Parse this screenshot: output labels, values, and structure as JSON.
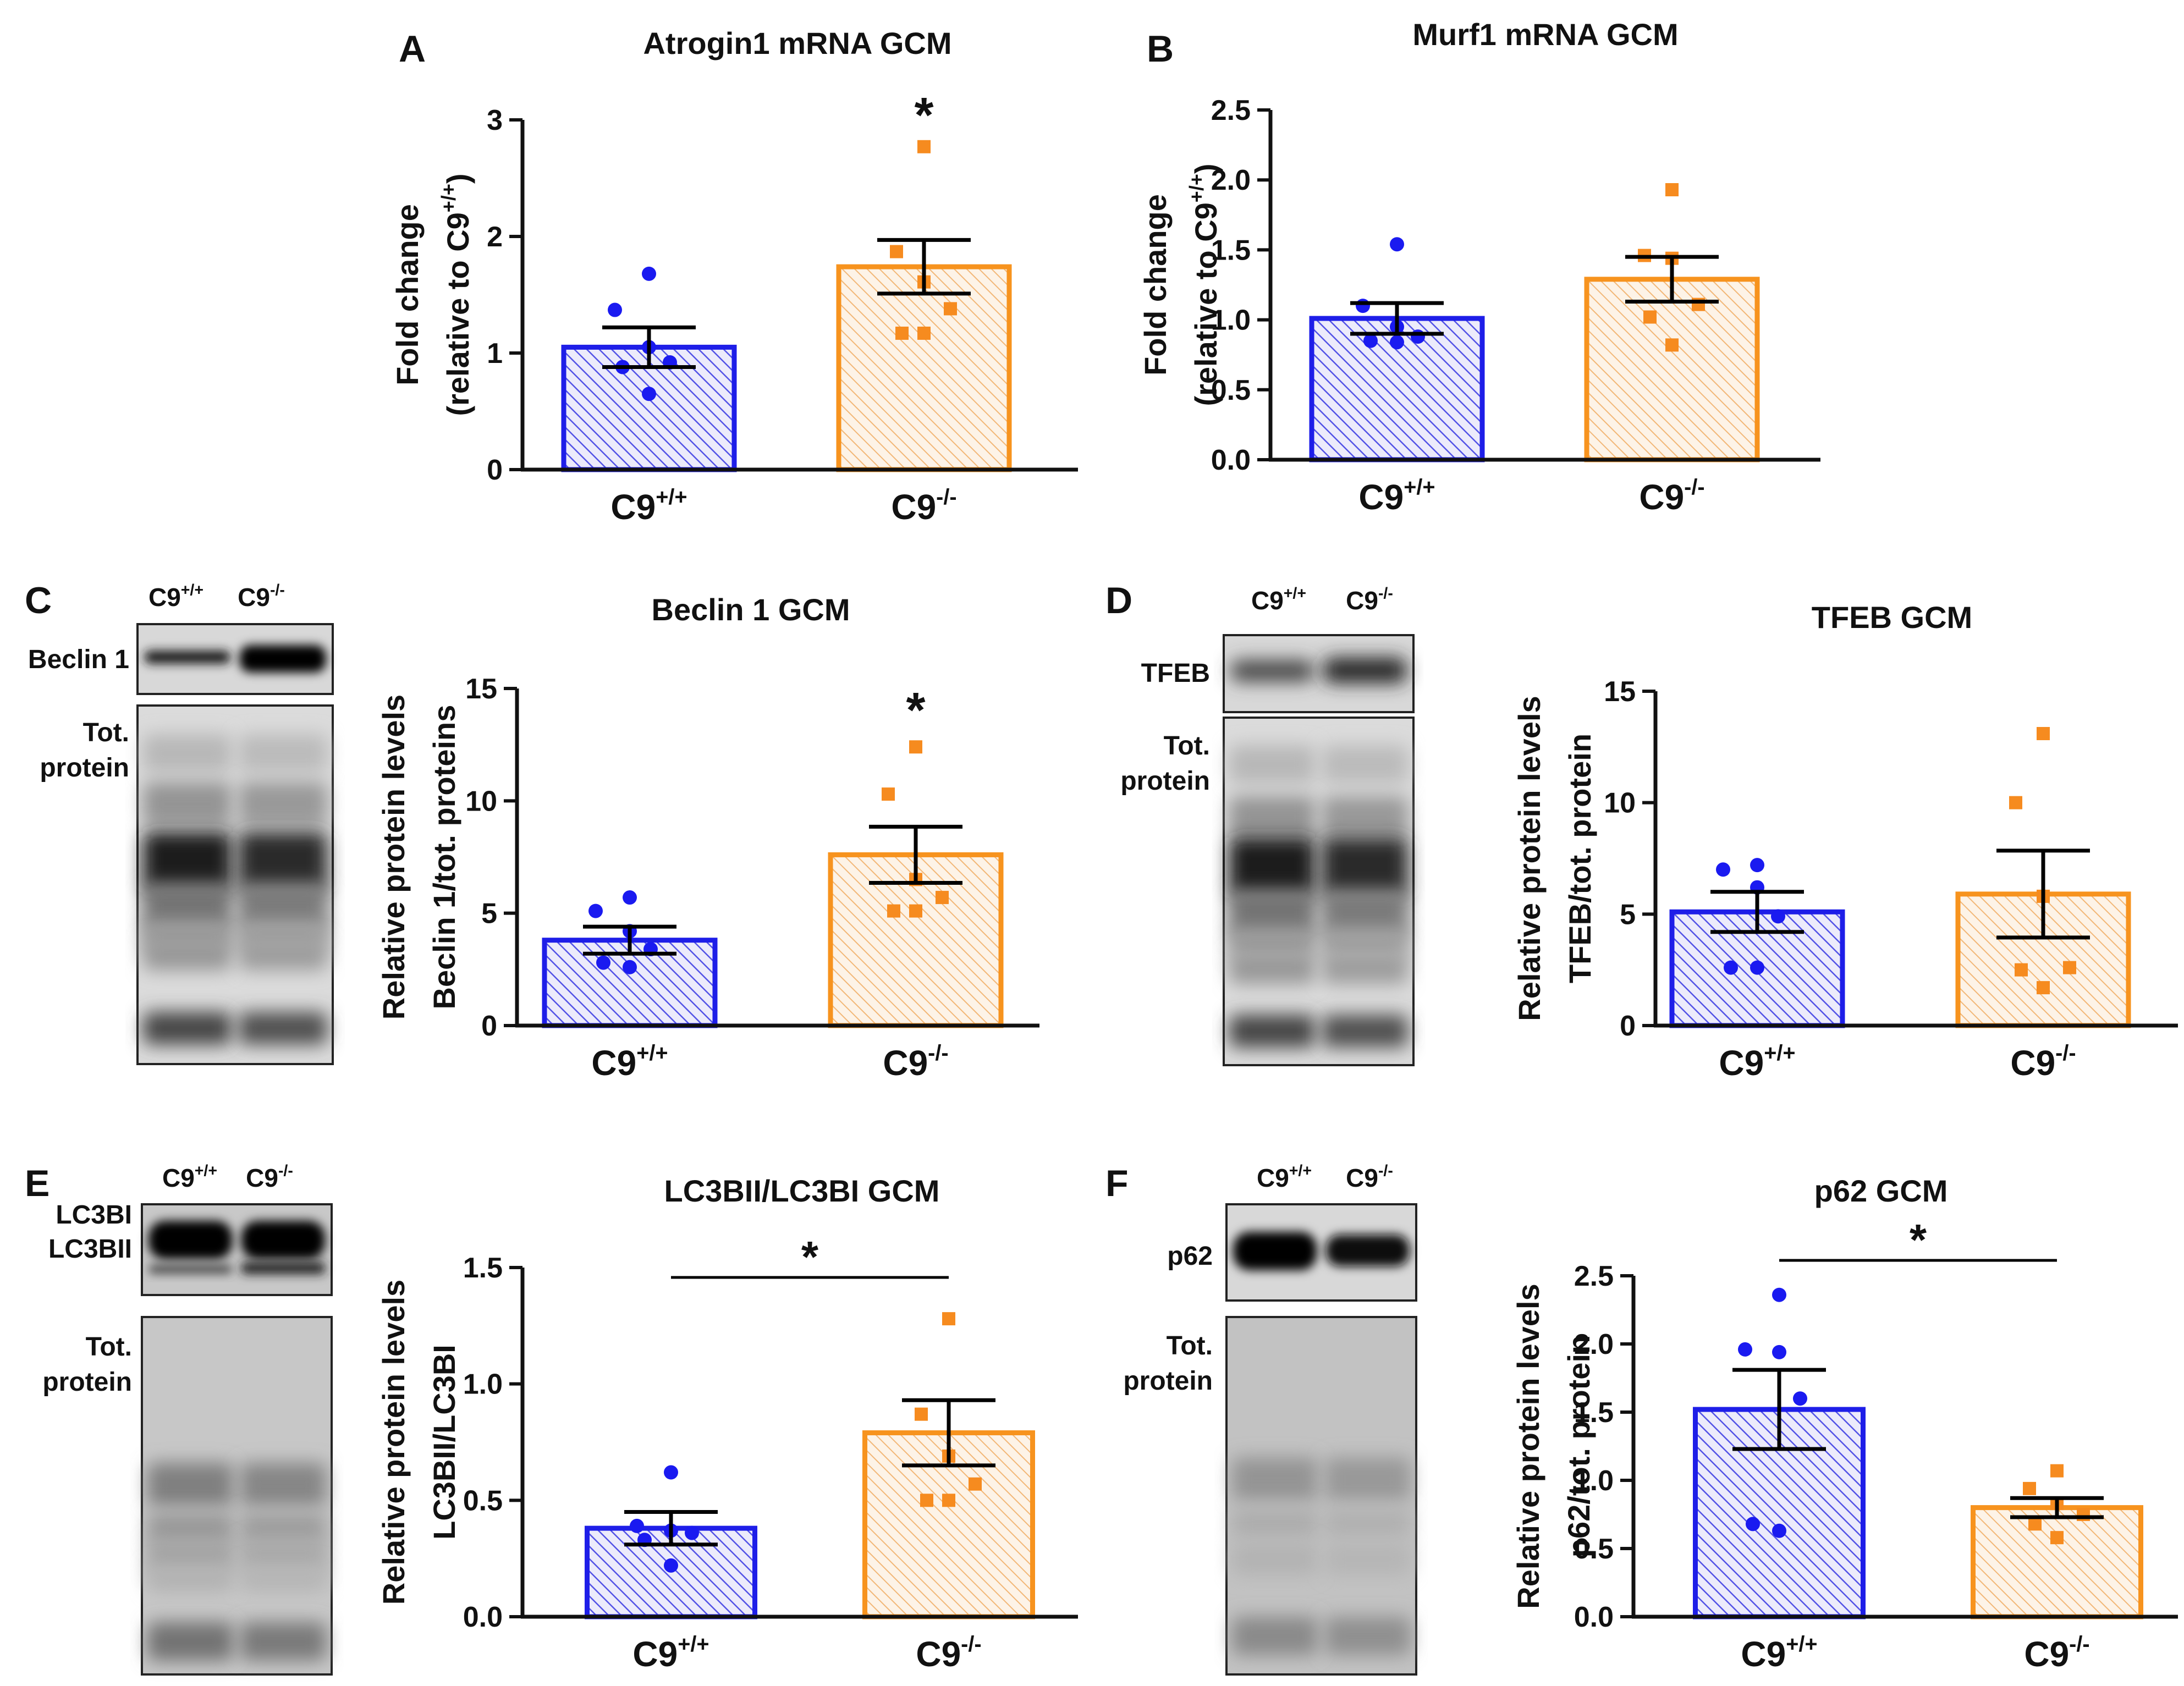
{
  "colors": {
    "wt": "#1e1ee8",
    "ko": "#f7931e",
    "wt_point": "#1a1af0",
    "ko_point": "#f68b1f",
    "axis": "#111111"
  },
  "genotypes": {
    "wt_base": "C9",
    "wt_sup": "+/+",
    "ko_base": "C9",
    "ko_sup": "-/-"
  },
  "chart_data": [
    {
      "panel": "A",
      "type": "bar",
      "title": "Atrogin1 mRNA GCM",
      "ylabel_line1": "Fold change",
      "ylabel_line2_prefix": "(relative to C9",
      "ylabel_line2_sup": "+/+",
      "ylabel_line2_suffix": ")",
      "ylim": [
        0,
        3
      ],
      "yticks": [
        0,
        1,
        2,
        3
      ],
      "tick_labels": [
        "0",
        "1",
        "2",
        "3"
      ],
      "categories": [
        "C9+/+",
        "C9-/-"
      ],
      "means": [
        1.05,
        1.74
      ],
      "sem": [
        0.17,
        0.23
      ],
      "points": [
        [
          1.68,
          1.37,
          1.05,
          0.92,
          0.88,
          0.65
        ],
        [
          2.77,
          1.87,
          1.61,
          1.38,
          1.17,
          1.17
        ]
      ],
      "significance": "*",
      "sig_style": "above"
    },
    {
      "panel": "B",
      "type": "bar",
      "title": "Murf1 mRNA GCM",
      "ylabel_line1": "Fold change",
      "ylabel_line2_prefix": "(relative to C9",
      "ylabel_line2_sup": "+/+",
      "ylabel_line2_suffix": ")",
      "ylim": [
        0,
        2.5
      ],
      "yticks": [
        0,
        0.5,
        1,
        1.5,
        2,
        2.5
      ],
      "tick_labels": [
        "0.0",
        "0.5",
        "1.0",
        "1.5",
        "2.0",
        "2.5"
      ],
      "categories": [
        "C9+/+",
        "C9-/-"
      ],
      "means": [
        1.01,
        1.29
      ],
      "sem": [
        0.11,
        0.16
      ],
      "points": [
        [
          1.54,
          1.1,
          0.95,
          0.88,
          0.85,
          0.84
        ],
        [
          1.93,
          1.46,
          1.44,
          1.11,
          1.02,
          0.82
        ]
      ],
      "significance": "",
      "sig_style": "none"
    },
    {
      "panel": "C",
      "type": "bar",
      "title": "Beclin 1 GCM",
      "ylabel_line1": "Relative protein levels",
      "ylabel_line2_prefix": "Beclin 1/tot. proteins",
      "ylabel_line2_sup": "",
      "ylabel_line2_suffix": "",
      "ylim": [
        0,
        15
      ],
      "yticks": [
        0,
        5,
        10,
        15
      ],
      "tick_labels": [
        "0",
        "5",
        "10",
        "15"
      ],
      "categories": [
        "C9+/+",
        "C9-/-"
      ],
      "means": [
        3.8,
        7.6
      ],
      "sem": [
        0.6,
        1.25
      ],
      "points": [
        [
          5.7,
          5.1,
          4.2,
          3.4,
          2.8,
          2.6
        ],
        [
          12.4,
          10.3,
          6.5,
          5.7,
          5.1,
          5.1
        ]
      ],
      "significance": "*",
      "sig_style": "above"
    },
    {
      "panel": "D",
      "type": "bar",
      "title": "TFEB GCM",
      "ylabel_line1": "Relative protein levels",
      "ylabel_line2_prefix": "TFEB/tot. protein",
      "ylabel_line2_sup": "",
      "ylabel_line2_suffix": "",
      "ylim": [
        0,
        15
      ],
      "yticks": [
        0,
        5,
        10,
        15
      ],
      "tick_labels": [
        "0",
        "5",
        "10",
        "15"
      ],
      "categories": [
        "C9+/+",
        "C9-/-"
      ],
      "means": [
        5.1,
        5.9
      ],
      "sem": [
        0.9,
        1.95
      ],
      "points": [
        [
          7.2,
          7.0,
          6.2,
          4.9,
          2.6,
          2.6
        ],
        [
          13.1,
          10.0,
          5.8,
          2.6,
          2.5,
          1.7
        ]
      ],
      "significance": "",
      "sig_style": "none"
    },
    {
      "panel": "E",
      "type": "bar",
      "title": "LC3BII/LC3BI GCM",
      "ylabel_line1": "Relative protein levels",
      "ylabel_line2_prefix": "LC3BII/LC3BI",
      "ylabel_line2_sup": "",
      "ylabel_line2_suffix": "",
      "ylim": [
        0,
        1.5
      ],
      "yticks": [
        0,
        0.5,
        1,
        1.5
      ],
      "tick_labels": [
        "0.0",
        "0.5",
        "1.0",
        "1.5"
      ],
      "categories": [
        "C9+/+",
        "C9-/-"
      ],
      "means": [
        0.38,
        0.79
      ],
      "sem": [
        0.07,
        0.14
      ],
      "points": [
        [
          0.62,
          0.39,
          0.37,
          0.36,
          0.33,
          0.22
        ],
        [
          1.28,
          0.87,
          0.69,
          0.57,
          0.5,
          0.5
        ]
      ],
      "significance": "*",
      "sig_style": "bracket"
    },
    {
      "panel": "F",
      "type": "bar",
      "title": "p62 GCM",
      "ylabel_line1": "Relative protein levels",
      "ylabel_line2_prefix": "p62/tot. protein",
      "ylabel_line2_sup": "",
      "ylabel_line2_suffix": "",
      "ylim": [
        0,
        2.5
      ],
      "yticks": [
        0,
        0.5,
        1,
        1.5,
        2,
        2.5
      ],
      "tick_labels": [
        "0.0",
        "0.5",
        "1.0",
        "1.5",
        "2.0",
        "2.5"
      ],
      "categories": [
        "C9+/+",
        "C9-/-"
      ],
      "means": [
        1.52,
        0.8
      ],
      "sem": [
        0.29,
        0.07
      ],
      "points": [
        [
          2.36,
          1.96,
          1.94,
          1.6,
          0.68,
          0.63
        ],
        [
          1.07,
          0.94,
          0.83,
          0.75,
          0.68,
          0.58
        ]
      ],
      "significance": "*",
      "sig_style": "bracket"
    }
  ],
  "blots": [
    {
      "panel": "C",
      "bands": [
        {
          "label_lines": [
            "Beclin 1"
          ]
        },
        {
          "label_lines": [
            "Tot.",
            "protein"
          ]
        }
      ]
    },
    {
      "panel": "D",
      "bands": [
        {
          "label_lines": [
            "TFEB"
          ]
        },
        {
          "label_lines": [
            "Tot.",
            "protein"
          ]
        }
      ]
    },
    {
      "panel": "E",
      "bands": [
        {
          "label_lines": [
            "LC3BI",
            "LC3BII"
          ]
        },
        {
          "label_lines": [
            "Tot.",
            "protein"
          ]
        }
      ]
    },
    {
      "panel": "F",
      "bands": [
        {
          "label_lines": [
            "p62"
          ]
        },
        {
          "label_lines": [
            "Tot.",
            "protein"
          ]
        }
      ]
    }
  ]
}
